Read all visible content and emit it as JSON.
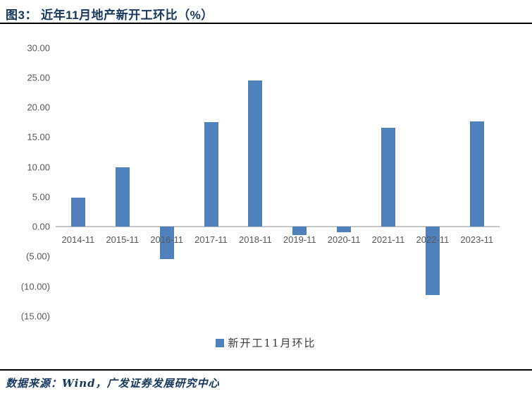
{
  "figure": {
    "title": "图3： 近年11月地产新开工环比（%）",
    "source_note": "数据来源：Wind，广发证券发展研究中心"
  },
  "chart_data": {
    "type": "bar",
    "title": "近年11月地产新开工环比（%）",
    "categories": [
      "2014-11",
      "2015-11",
      "2016-11",
      "2017-11",
      "2018-11",
      "2019-11",
      "2020-11",
      "2021-11",
      "2022-11",
      "2023-11"
    ],
    "values": [
      4.9,
      9.9,
      -5.5,
      17.5,
      24.5,
      -1.4,
      -0.9,
      16.6,
      -11.5,
      17.6
    ],
    "series_name": "新开工11月环比",
    "legend": [
      "新开工11月环比"
    ],
    "legend_position": "bottom",
    "xlabel": "",
    "ylabel": "",
    "ylim": [
      -15,
      30
    ],
    "y_ticks": [
      30,
      25,
      20,
      15,
      10,
      5,
      0,
      -5,
      -10,
      -15
    ],
    "y_tick_labels": [
      "30.00",
      "25.00",
      "20.00",
      "15.00",
      "10.00",
      "5.00",
      "0.00",
      "(5.00)",
      "(10.00)",
      "(15.00)"
    ],
    "grid": false,
    "bar_color": "#4F81BD"
  },
  "colors": {
    "bar": "#4F81BD",
    "title_text": "#17375E",
    "axis_text": "#595959",
    "axis_line": "#C7C7C7",
    "rule": "#000000"
  }
}
